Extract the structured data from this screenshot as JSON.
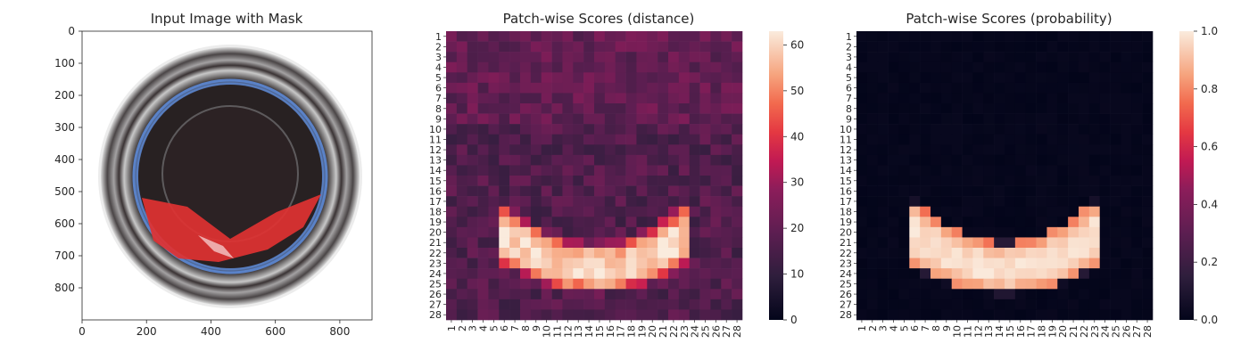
{
  "chart_data": [
    {
      "type": "image",
      "title": "Input Image with Mask",
      "xlim": [
        0,
        900
      ],
      "ylim": [
        900,
        0
      ],
      "xticks": [
        0,
        200,
        400,
        600,
        800
      ],
      "yticks": [
        0,
        100,
        200,
        300,
        400,
        500,
        600,
        700,
        800
      ],
      "xtick_labels": [
        "0",
        "200",
        "400",
        "600",
        "800"
      ],
      "ytick_labels": [
        "0",
        "100",
        "200",
        "300",
        "400",
        "500",
        "600",
        "700",
        "800"
      ]
    },
    {
      "type": "heatmap",
      "title": "Patch-wise Scores (distance)",
      "rows": 28,
      "cols": 28,
      "colorbar": {
        "min": 0,
        "max": 63,
        "ticks": [
          0,
          10,
          20,
          30,
          40,
          50,
          60
        ],
        "tick_labels": [
          "0",
          "10",
          "20",
          "30",
          "40",
          "50",
          "60"
        ]
      },
      "background_level": 13,
      "anomaly_band_peak": 63
    },
    {
      "type": "heatmap",
      "title": "Patch-wise Scores (probability)",
      "rows": 28,
      "cols": 28,
      "colorbar": {
        "min": 0.0,
        "max": 1.0,
        "ticks": [
          0.0,
          0.2,
          0.4,
          0.6,
          0.8,
          1.0
        ],
        "tick_labels": [
          "0.0",
          "0.2",
          "0.4",
          "0.6",
          "0.8",
          "1.0"
        ]
      },
      "background_level": 0.0,
      "anomaly_band_peak": 1.0
    }
  ],
  "axis_labels": {
    "heat_ticks": [
      "1",
      "2",
      "3",
      "4",
      "5",
      "6",
      "7",
      "8",
      "9",
      "10",
      "11",
      "12",
      "13",
      "14",
      "15",
      "16",
      "17",
      "18",
      "19",
      "20",
      "21",
      "22",
      "23",
      "24",
      "25",
      "26",
      "27",
      "28"
    ]
  },
  "colors": {
    "mask": "#e03232",
    "container_rim": "#3b3b3b",
    "container_blue": "#5a7fc9",
    "background": "#ffffff"
  }
}
